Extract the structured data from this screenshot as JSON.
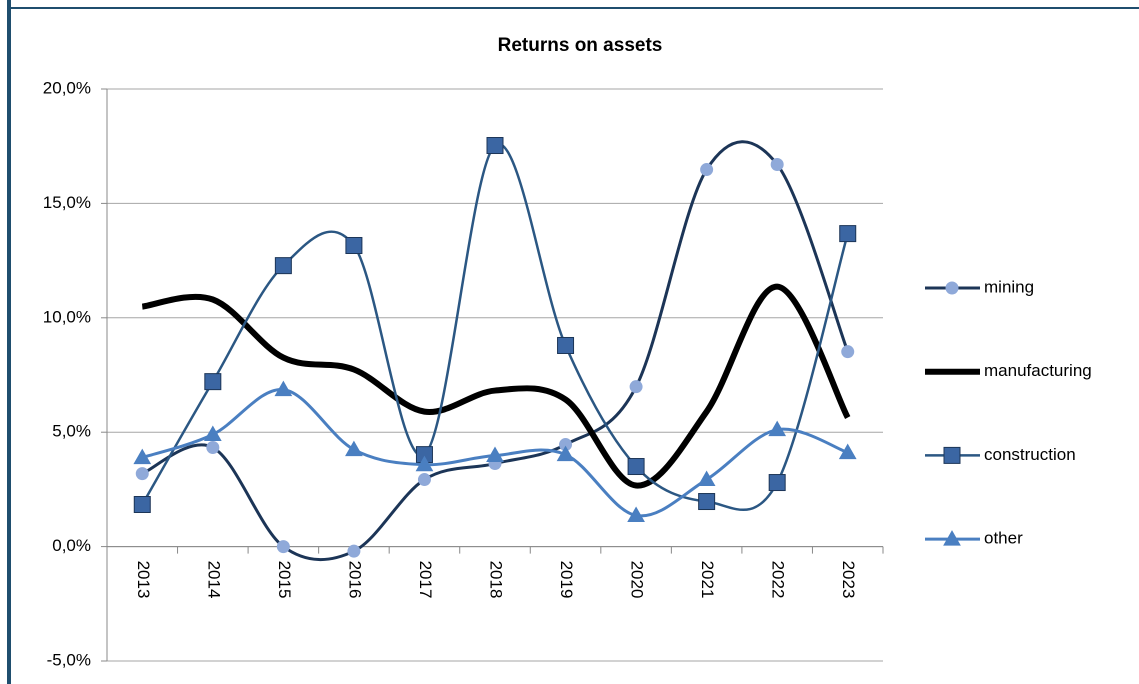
{
  "chart_data": {
    "type": "line",
    "title": "Returns on assets",
    "categories": [
      "2013",
      "2014",
      "2015",
      "2016",
      "2017",
      "2018",
      "2019",
      "2020",
      "2021",
      "2022",
      "2023"
    ],
    "series": [
      {
        "name": "mining",
        "color": "#1c3557",
        "marker": "circle",
        "marker_color": "#8fa9d9",
        "width": 3,
        "values": [
          3.19,
          4.33,
          0.0,
          -0.2,
          2.93,
          3.63,
          4.46,
          6.99,
          16.48,
          16.7,
          8.52
        ]
      },
      {
        "name": "manufacturing",
        "color": "#000000",
        "marker": "none",
        "marker_color": "#000000",
        "width": 6,
        "values": [
          10.49,
          10.8,
          8.26,
          7.74,
          5.9,
          6.82,
          6.43,
          2.67,
          5.9,
          11.36,
          5.64
        ]
      },
      {
        "name": "construction",
        "color": "#2b5783",
        "marker": "square",
        "marker_color": "#3b66a3",
        "width": 2.5,
        "values": [
          1.84,
          7.21,
          12.28,
          13.16,
          4.02,
          17.53,
          8.79,
          3.5,
          1.97,
          2.8,
          13.68
        ]
      },
      {
        "name": "other",
        "color": "#4a7fc1",
        "marker": "triangle",
        "marker_color": "#4a7fc1",
        "width": 3,
        "values": [
          3.89,
          4.9,
          6.86,
          4.24,
          3.58,
          3.98,
          4.02,
          1.36,
          2.93,
          5.11,
          4.11
        ]
      }
    ],
    "ylim": [
      -5,
      20
    ],
    "yticks": [
      {
        "value": -5,
        "label": "-5,0%"
      },
      {
        "value": 0,
        "label": "0,0%"
      },
      {
        "value": 5,
        "label": "5,0%"
      },
      {
        "value": 10,
        "label": "10,0%"
      },
      {
        "value": 15,
        "label": "15,0%"
      },
      {
        "value": 20,
        "label": "20,0%"
      }
    ],
    "grid": true,
    "legend": "right"
  }
}
